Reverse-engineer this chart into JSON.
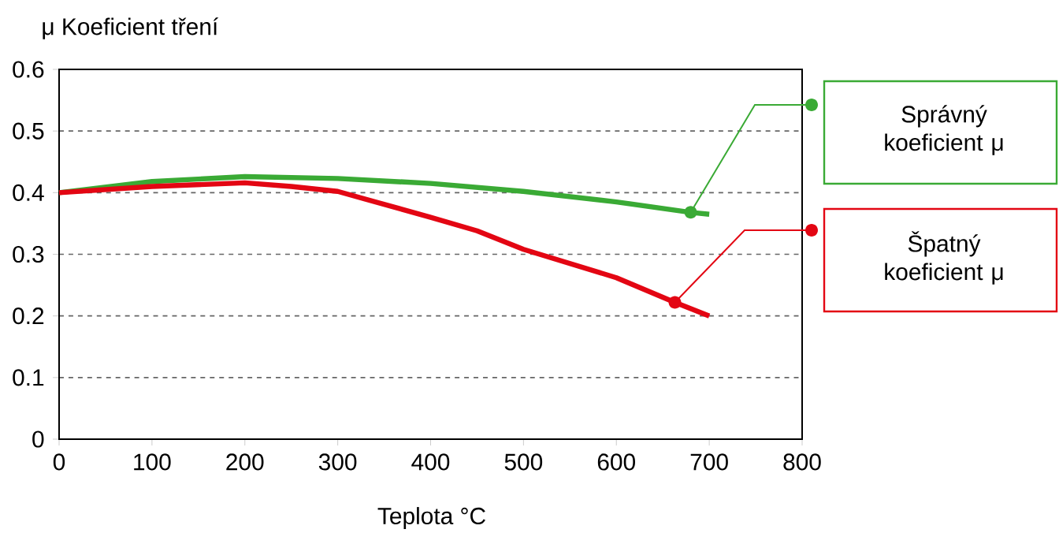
{
  "chart_data": {
    "type": "line",
    "ylabel": "μ Koeficient tření",
    "xlabel": "Teplota °C",
    "xlim": [
      0,
      800
    ],
    "xticks": [
      0,
      100,
      200,
      300,
      400,
      500,
      600,
      700,
      800
    ],
    "ylim": [
      0,
      0.6
    ],
    "yticks": [
      0,
      0.1,
      0.2,
      0.3,
      0.4,
      0.5,
      0.6
    ],
    "grid": "y",
    "legend": "right",
    "series": [
      {
        "name": "Správný koeficient μ",
        "color": "#3aaa35",
        "x": [
          0,
          100,
          200,
          300,
          400,
          500,
          600,
          680,
          700
        ],
        "values": [
          0.4,
          0.418,
          0.426,
          0.423,
          0.415,
          0.402,
          0.385,
          0.368,
          0.365
        ]
      },
      {
        "name": "Špatný koeficient μ",
        "color": "#e30613",
        "x": [
          0,
          100,
          200,
          250,
          300,
          400,
          450,
          500,
          600,
          663,
          700
        ],
        "values": [
          0.4,
          0.41,
          0.416,
          0.41,
          0.402,
          0.36,
          0.338,
          0.308,
          0.262,
          0.222,
          0.2
        ]
      }
    ]
  }
}
